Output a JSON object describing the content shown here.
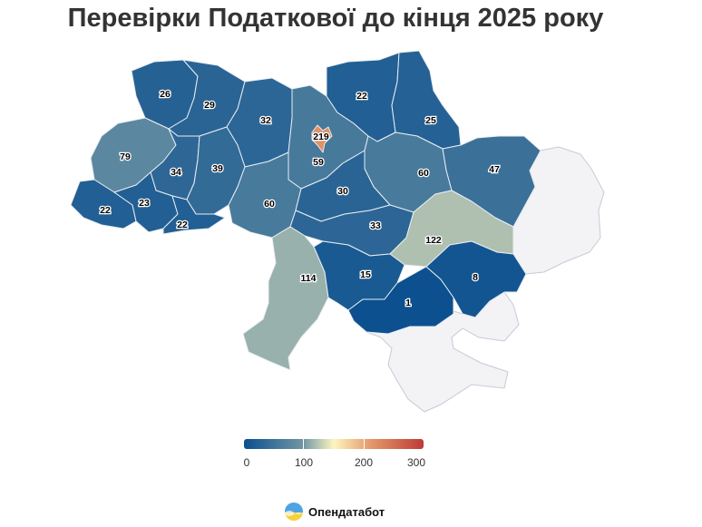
{
  "title": "Перевірки Податкової до кінця 2025 року",
  "colors": {
    "scale_low": "#0b4f8f",
    "scale_mid_low": "#7196a4",
    "scale_mid": "#fdf6c0",
    "scale_mid_high": "#e59a6c",
    "scale_high": "#bd3a36",
    "occupied": "#f3f3f6"
  },
  "legend": {
    "min": 0,
    "max": 300,
    "ticks": [
      "0",
      "100",
      "200",
      "300"
    ]
  },
  "regions": [
    {
      "id": "volynska",
      "value": 26,
      "label": "26"
    },
    {
      "id": "rivnenska",
      "value": 29,
      "label": "29"
    },
    {
      "id": "zhytomyrska",
      "value": 32,
      "label": "32"
    },
    {
      "id": "kyivska",
      "value": 59,
      "label": "59"
    },
    {
      "id": "kyiv-city",
      "value": 219,
      "label": "219"
    },
    {
      "id": "chernihivska",
      "value": 22,
      "label": "22"
    },
    {
      "id": "sumska",
      "value": 25,
      "label": "25"
    },
    {
      "id": "kharkivska",
      "value": 47,
      "label": "47"
    },
    {
      "id": "poltavska",
      "value": 60,
      "label": "60"
    },
    {
      "id": "lvivska",
      "value": 79,
      "label": "79"
    },
    {
      "id": "ternopilska",
      "value": 34,
      "label": "34"
    },
    {
      "id": "khmelnytska",
      "value": 39,
      "label": "39"
    },
    {
      "id": "vinnytska",
      "value": 60,
      "label": "60"
    },
    {
      "id": "cherkaska",
      "value": 30,
      "label": "30"
    },
    {
      "id": "zakarpatska",
      "value": 22,
      "label": "22"
    },
    {
      "id": "ivano-frankivska",
      "value": 23,
      "label": "23"
    },
    {
      "id": "chernivetska",
      "value": 22,
      "label": "22"
    },
    {
      "id": "kirovohradska",
      "value": 33,
      "label": "33"
    },
    {
      "id": "dnipropetrovska",
      "value": 122,
      "label": "122"
    },
    {
      "id": "odeska",
      "value": 114,
      "label": "114"
    },
    {
      "id": "mykolaivska",
      "value": 15,
      "label": "15"
    },
    {
      "id": "khersonska",
      "value": 1,
      "label": "1"
    },
    {
      "id": "zaporizka",
      "value": 8,
      "label": "8"
    }
  ],
  "brand": {
    "name": "Опендатабот",
    "icon": "opendatabot-logo-icon"
  }
}
